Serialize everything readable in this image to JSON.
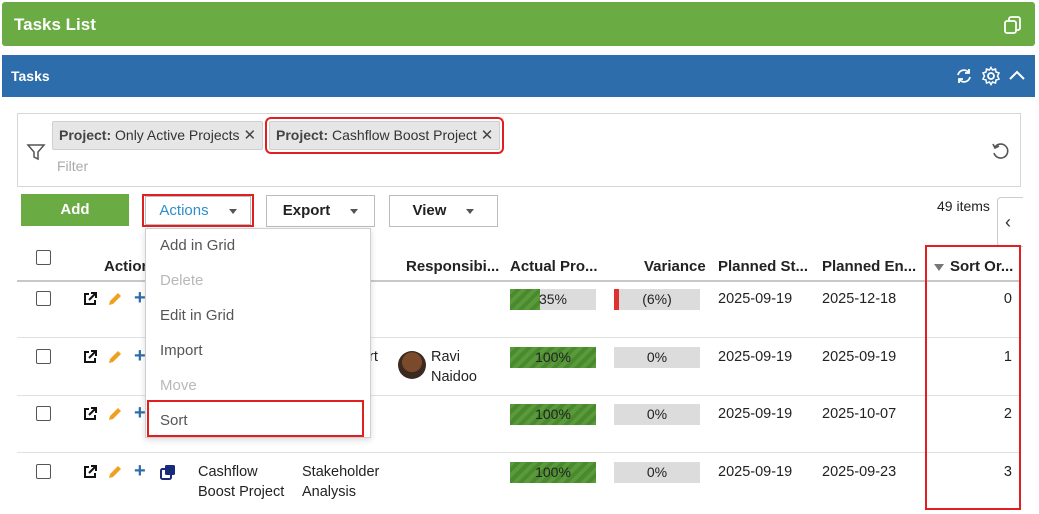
{
  "title": "Tasks  List",
  "panel": {
    "title": "Tasks"
  },
  "filters": {
    "chips": [
      {
        "key": "Project:",
        "value": "Only Active Projects"
      },
      {
        "key": "Project:",
        "value": "Cashflow Boost Project"
      }
    ],
    "placeholder": "Filter"
  },
  "toolbar": {
    "add": "Add",
    "actions": "Actions",
    "export": "Export",
    "view": "View",
    "items_count": "49 items"
  },
  "columns": {
    "actions": "Action",
    "responsible": "Responsibi...",
    "progress": "Actual Pro...",
    "variance": "Variance",
    "planned_start": "Planned St...",
    "planned_end": "Planned En...",
    "sort_order": "Sort Or..."
  },
  "actions_menu": [
    "Add in Grid",
    "Delete",
    "Edit in Grid",
    "Import",
    "Move",
    "Sort"
  ],
  "rows": [
    {
      "project": "",
      "task": "",
      "responsible": "",
      "progress": "35%",
      "progress_value": 35,
      "variance": "(6%)",
      "start": "2025-09-19",
      "end": "2025-12-18",
      "sort": "0"
    },
    {
      "project": "",
      "task": "rt",
      "responsible": "Ravi",
      "responsible2": "Naidoo",
      "progress": "100%",
      "progress_value": 100,
      "variance": "0%",
      "start": "2025-09-19",
      "end": "2025-09-19",
      "sort": "1"
    },
    {
      "project": "",
      "task": "",
      "responsible": "",
      "progress": "100%",
      "progress_value": 100,
      "variance": "0%",
      "start": "2025-09-19",
      "end": "2025-10-07",
      "sort": "2"
    },
    {
      "project": "Cashflow",
      "project2": "Boost Project",
      "task": "Stakeholder",
      "task2": "Analysis",
      "responsible": "",
      "progress": "100%",
      "progress_value": 100,
      "variance": "0%",
      "start": "2025-09-19",
      "end": "2025-09-23",
      "sort": "3"
    }
  ],
  "colors": {
    "green": "#6aab44",
    "blue": "#2e6dab",
    "highlight": "#e02020",
    "variance_negative": "#e03030"
  }
}
